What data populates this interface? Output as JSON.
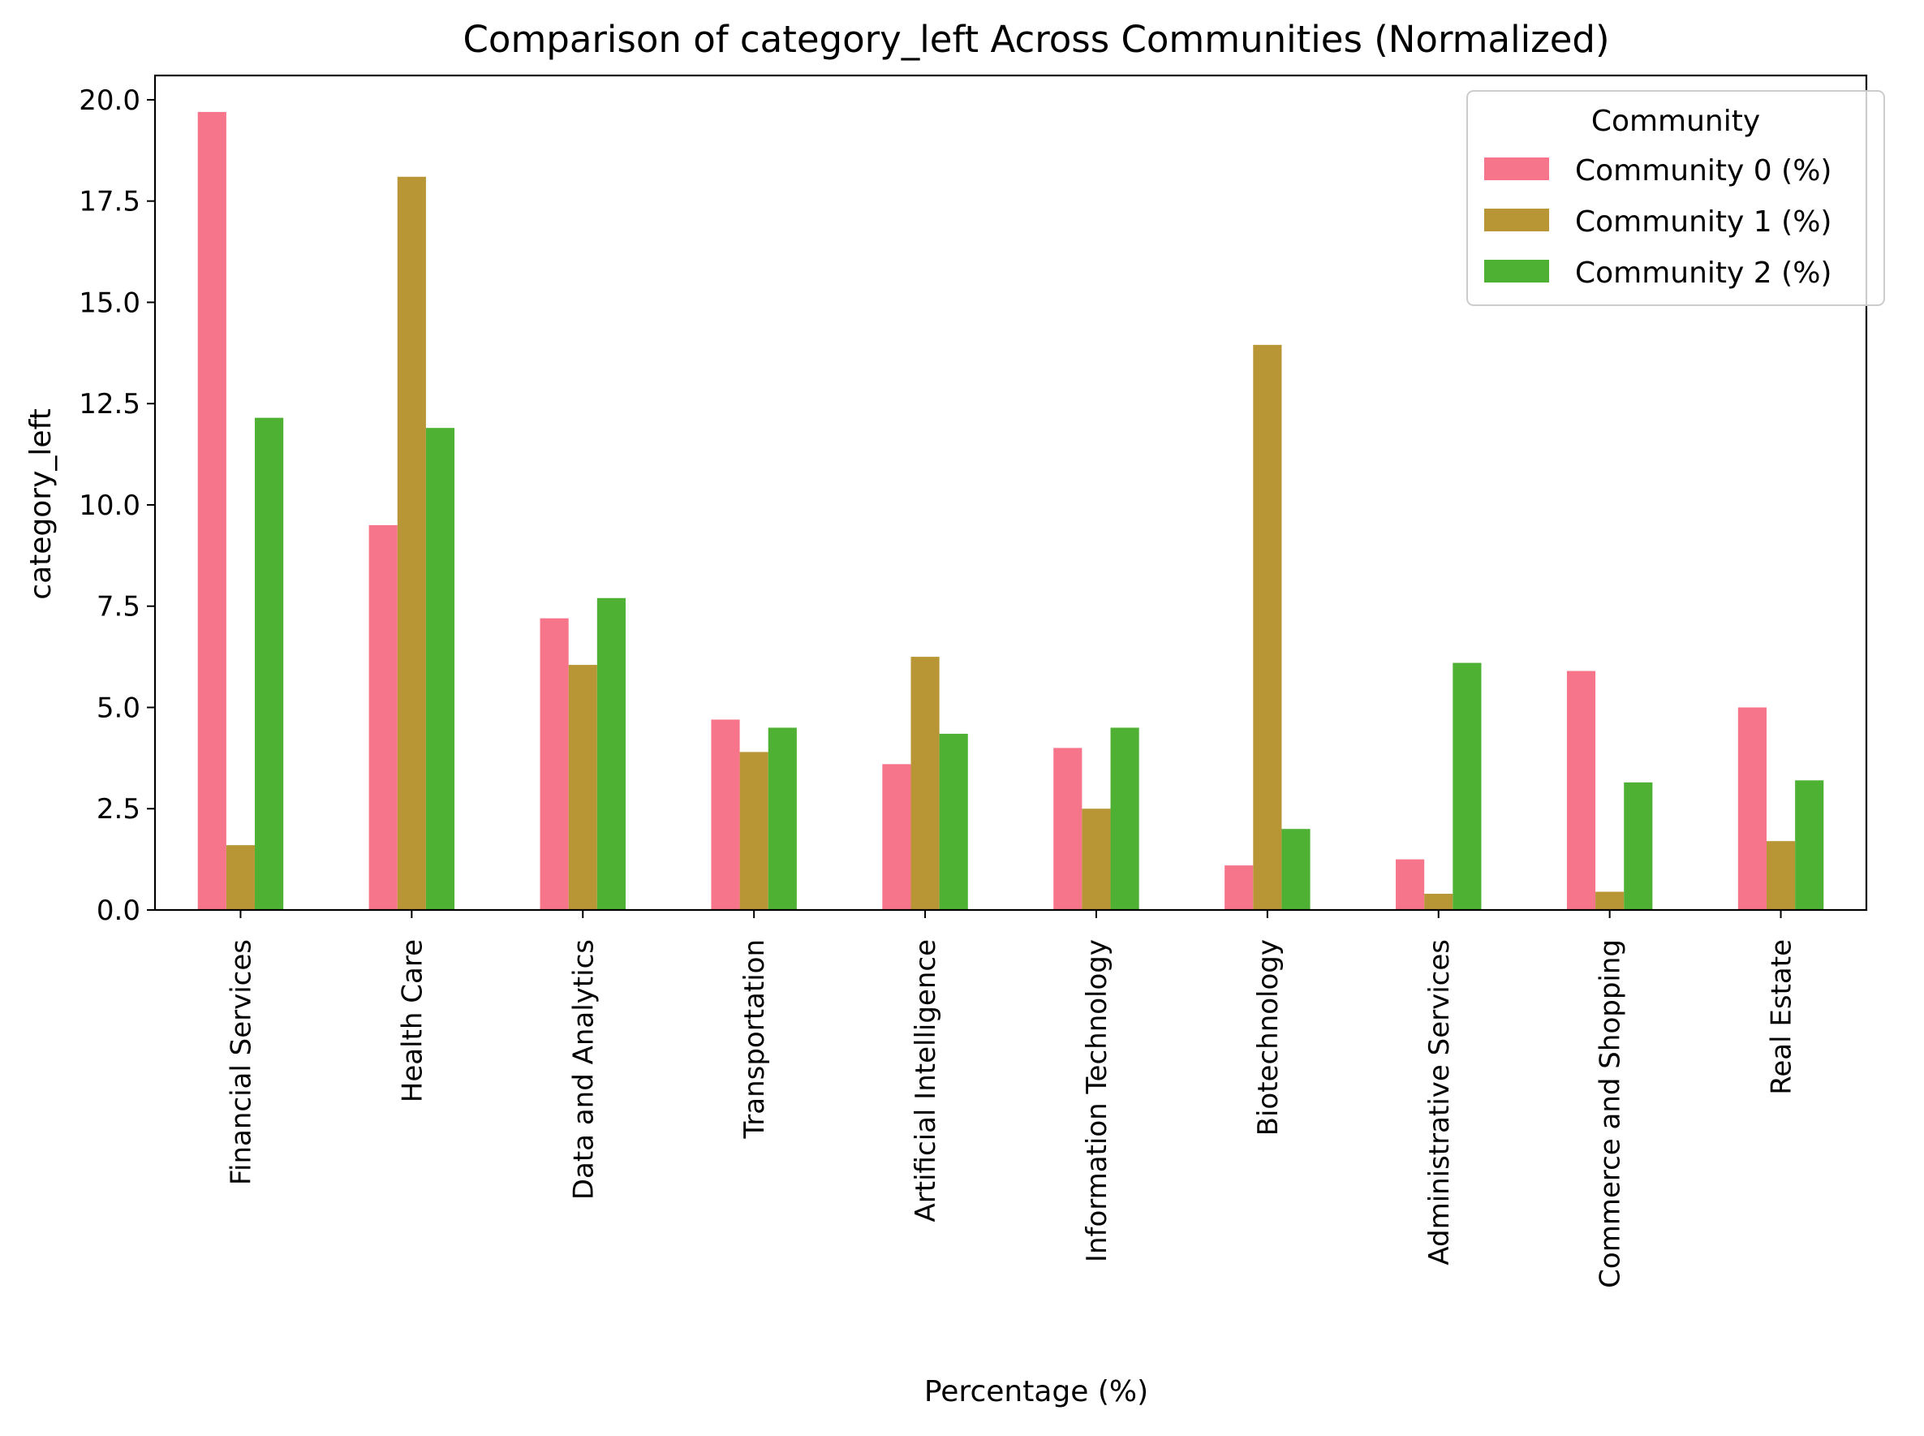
{
  "chart_data": {
    "type": "bar",
    "title": "Comparison of category_left Across Communities (Normalized)",
    "xlabel": "Percentage (%)",
    "ylabel": "category_left",
    "ylim": [
      0,
      20.6
    ],
    "yticks": [
      "0.0",
      "2.5",
      "5.0",
      "7.5",
      "10.0",
      "12.5",
      "15.0",
      "17.5",
      "20.0"
    ],
    "ytick_values": [
      0,
      2.5,
      5,
      7.5,
      10,
      12.5,
      15,
      17.5,
      20
    ],
    "categories": [
      "Financial Services",
      "Health Care",
      "Data and Analytics",
      "Transportation",
      "Artificial Intelligence",
      "Information Technology",
      "Biotechnology",
      "Administrative Services",
      "Commerce and Shopping",
      "Real Estate"
    ],
    "series": [
      {
        "name": "Community 0 (%)",
        "color": "#f6758a",
        "values": [
          19.7,
          9.5,
          7.2,
          4.7,
          3.6,
          4.0,
          1.1,
          1.25,
          5.9,
          5.0
        ]
      },
      {
        "name": "Community 1 (%)",
        "color": "#b89635",
        "values": [
          1.6,
          18.1,
          6.05,
          3.9,
          6.25,
          2.5,
          13.95,
          0.4,
          0.45,
          1.7
        ]
      },
      {
        "name": "Community 2 (%)",
        "color": "#4fb134",
        "values": [
          12.15,
          11.9,
          7.7,
          4.5,
          4.35,
          4.5,
          2.0,
          6.1,
          3.15,
          3.2
        ]
      }
    ],
    "legend": {
      "title": "Community",
      "position": "upper right"
    },
    "grid": false
  }
}
